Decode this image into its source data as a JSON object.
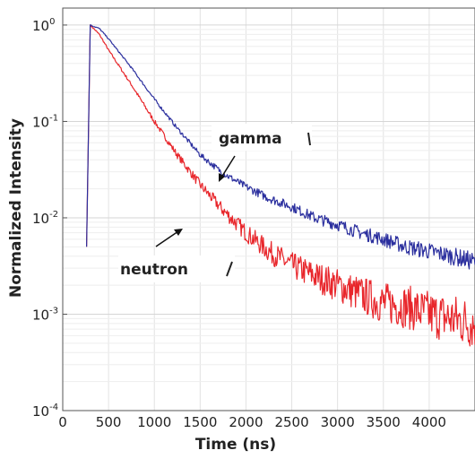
{
  "chart_data": {
    "type": "line",
    "xlabel": "Time (ns)",
    "ylabel": "Normalized Intensity",
    "xlim": [
      0,
      4500
    ],
    "ylim": [
      0.0001,
      1.5
    ],
    "yscale": "log",
    "grid": true,
    "xticks": [
      "0",
      "500",
      "1000",
      "1500",
      "2000",
      "2500",
      "3000",
      "3500",
      "4000"
    ],
    "xtick_values": [
      0,
      500,
      1000,
      1500,
      2000,
      2500,
      3000,
      3500,
      4000
    ],
    "yticks": [
      {
        "base": "10",
        "exp": "0",
        "value": 1
      },
      {
        "base": "10",
        "exp": "-1",
        "value": 0.1
      },
      {
        "base": "10",
        "exp": "-2",
        "value": 0.01
      },
      {
        "base": "10",
        "exp": "-3",
        "value": 0.001
      },
      {
        "base": "10",
        "exp": "-4",
        "value": 0.0001
      }
    ],
    "series": [
      {
        "name": "gamma",
        "color": "#2b2f9e",
        "x": [
          260,
          300,
          400,
          500,
          750,
          1000,
          1250,
          1500,
          1750,
          2000,
          2250,
          2500,
          2750,
          3000,
          3250,
          3500,
          3750,
          4000,
          4250,
          4500
        ],
        "y": [
          0.005,
          1.0,
          0.92,
          0.72,
          0.36,
          0.17,
          0.085,
          0.045,
          0.029,
          0.021,
          0.016,
          0.013,
          0.01,
          0.0085,
          0.007,
          0.006,
          0.005,
          0.0045,
          0.004,
          0.0035
        ]
      },
      {
        "name": "neutron",
        "color": "#e8262b",
        "x": [
          260,
          300,
          400,
          500,
          750,
          1000,
          1250,
          1500,
          1750,
          2000,
          2250,
          2500,
          2750,
          3000,
          3250,
          3500,
          3750,
          4000,
          4250,
          4500
        ],
        "y": [
          0.005,
          1.0,
          0.8,
          0.55,
          0.24,
          0.1,
          0.045,
          0.022,
          0.012,
          0.007,
          0.0045,
          0.0032,
          0.0025,
          0.002,
          0.0016,
          0.0013,
          0.0012,
          0.001,
          0.0009,
          0.0008
        ]
      }
    ],
    "annotations": [
      {
        "text": "gamma",
        "series": "gamma"
      },
      {
        "text": "neutron",
        "series": "neutron"
      }
    ]
  }
}
